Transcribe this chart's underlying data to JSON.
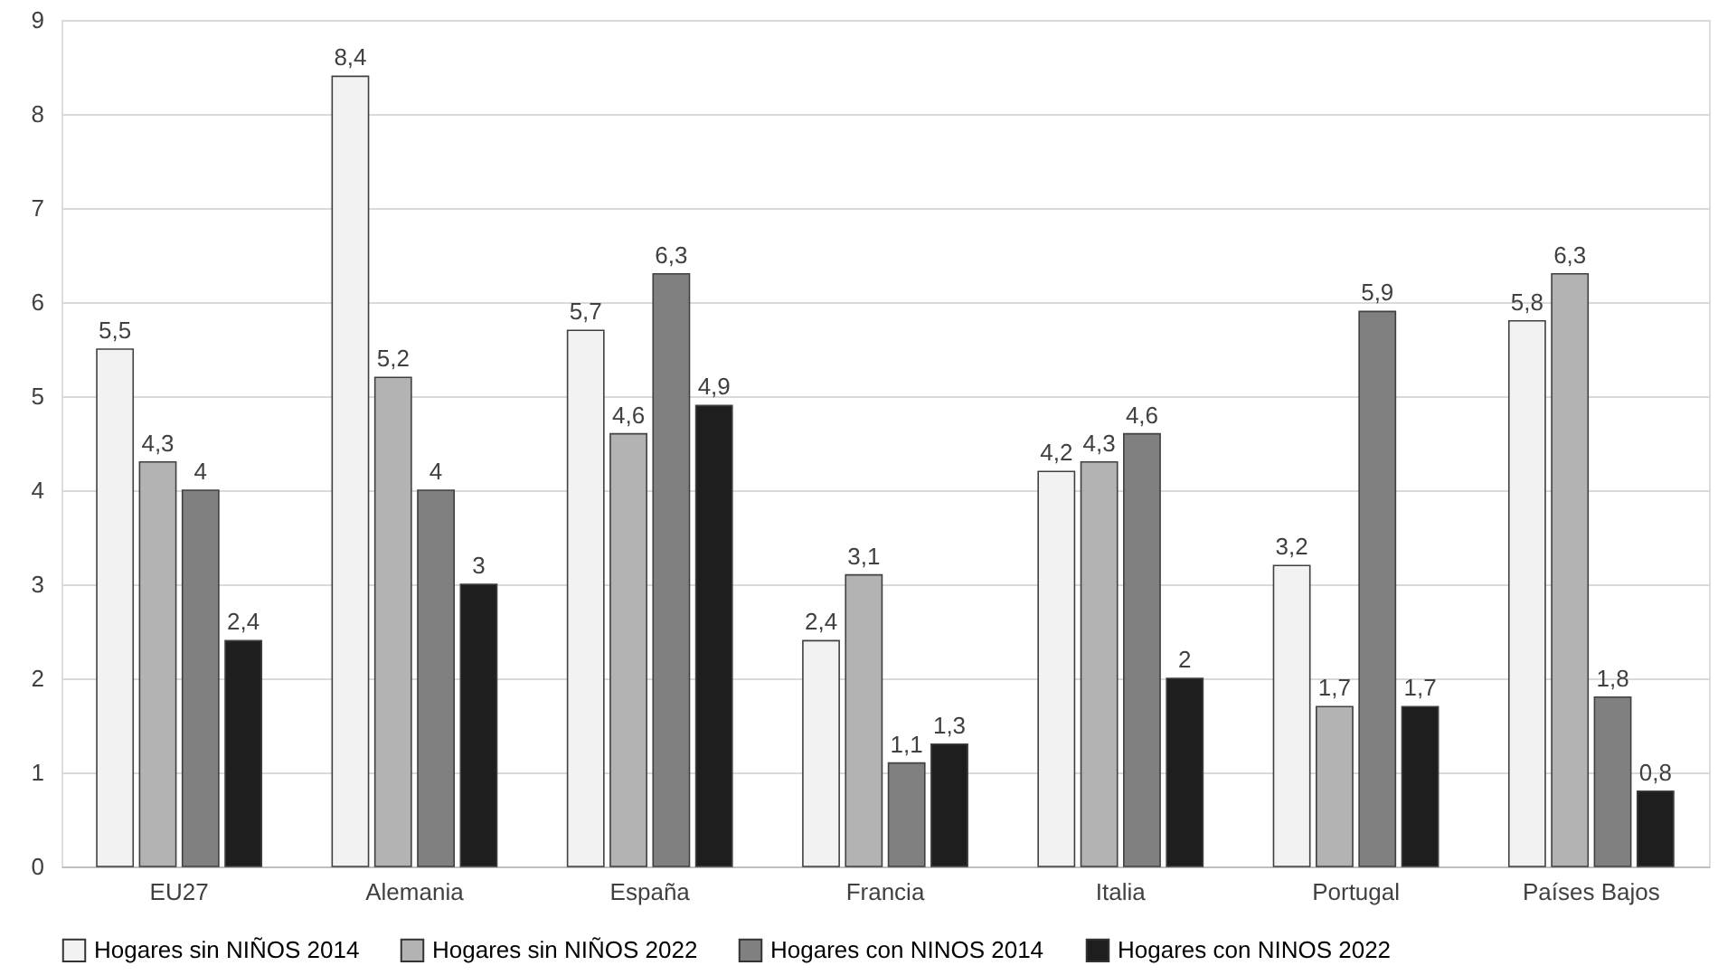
{
  "chart_data": {
    "type": "bar",
    "categories": [
      "EU27",
      "Alemania",
      "España",
      "Francia",
      "Italia",
      "Portugal",
      "Países Bajos"
    ],
    "series": [
      {
        "name": "Hogares sin NIÑOS 2014",
        "color": "#f2f2f2",
        "values": [
          5.5,
          8.4,
          5.7,
          2.4,
          4.2,
          3.2,
          5.8
        ],
        "value_labels": [
          "5,5",
          "8,4",
          "5,7",
          "2,4",
          "4,2",
          "3,2",
          "5,8"
        ]
      },
      {
        "name": "Hogares sin NIÑOS 2022",
        "color": "#b3b3b3",
        "values": [
          4.3,
          5.2,
          4.6,
          3.1,
          4.3,
          1.7,
          6.3
        ],
        "value_labels": [
          "4,3",
          "5,2",
          "4,6",
          "3,1",
          "4,3",
          "1,7",
          "6,3"
        ]
      },
      {
        "name": "Hogares con NINOS 2014",
        "color": "#808080",
        "values": [
          4,
          4,
          6.3,
          1.1,
          4.6,
          5.9,
          1.8
        ],
        "value_labels": [
          "4",
          "4",
          "6,3",
          "1,1",
          "4,6",
          "5,9",
          "1,8"
        ]
      },
      {
        "name": "Hogares con NINOS 2022",
        "color": "#1e1e1e",
        "values": [
          2.4,
          3,
          4.9,
          1.3,
          2,
          1.7,
          0.8
        ],
        "value_labels": [
          "2,4",
          "3",
          "4,9",
          "1,3",
          "2",
          "1,7",
          "0,8"
        ]
      }
    ],
    "ylim": [
      0,
      9
    ],
    "yticks": [
      0,
      1,
      2,
      3,
      4,
      5,
      6,
      7,
      8,
      9
    ],
    "grid": "y",
    "legend": "bottom"
  }
}
